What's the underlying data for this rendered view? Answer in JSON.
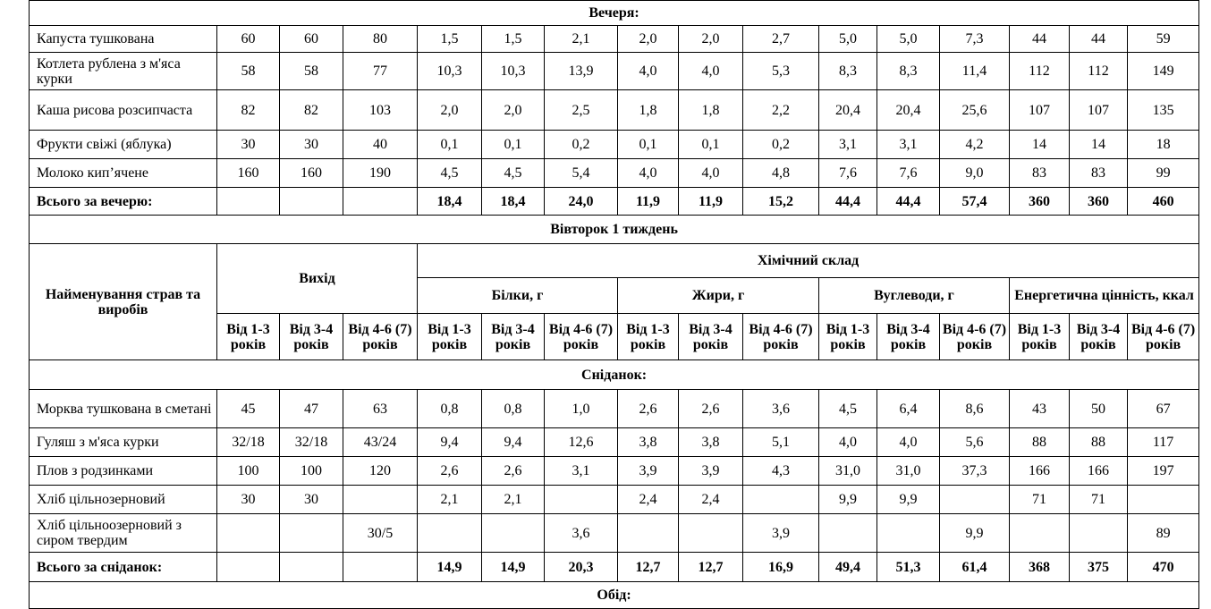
{
  "dinner": {
    "title": "Вечеря:",
    "rows": [
      [
        "Капуста тушкована",
        "60",
        "60",
        "80",
        "1,5",
        "1,5",
        "2,1",
        "2,0",
        "2,0",
        "2,7",
        "5,0",
        "5,0",
        "7,3",
        "44",
        "44",
        "59"
      ],
      [
        "Котлета рублена з м'яса курки",
        "58",
        "58",
        "77",
        "10,3",
        "10,3",
        "13,9",
        "4,0",
        "4,0",
        "5,3",
        "8,3",
        "8,3",
        "11,4",
        "112",
        "112",
        "149"
      ],
      [
        "Каша рисова розсипчаста",
        "82",
        "82",
        "103",
        "2,0",
        "2,0",
        "2,5",
        "1,8",
        "1,8",
        "2,2",
        "20,4",
        "20,4",
        "25,6",
        "107",
        "107",
        "135"
      ],
      [
        "Фрукти свіжі (яблука)",
        "30",
        "30",
        "40",
        "0,1",
        "0,1",
        "0,2",
        "0,1",
        "0,1",
        "0,2",
        "3,1",
        "3,1",
        "4,2",
        "14",
        "14",
        "18"
      ],
      [
        "Молоко кип’ячене",
        "160",
        "160",
        "190",
        "4,5",
        "4,5",
        "5,4",
        "4,0",
        "4,0",
        "4,8",
        "7,6",
        "7,6",
        "9,0",
        "83",
        "83",
        "99"
      ]
    ],
    "total": [
      "Всього за вечерю:",
      null,
      null,
      null,
      "18,4",
      "18,4",
      "24,0",
      "11,9",
      "11,9",
      "15,2",
      "44,4",
      "44,4",
      "57,4",
      "360",
      "360",
      "460"
    ]
  },
  "day_title": "Вівторок 1 тиждень",
  "header": {
    "name": "Найменування страв та виробів",
    "output": "Вихід",
    "chem": "Хімічний склад",
    "groups": [
      "Білки, г",
      "Жири, г",
      "Вуглеводи, г",
      "Енергетична цінність, ккал"
    ],
    "ages": [
      "Від 1-3 років",
      "Від 3-4 років",
      "Від 4-6 (7) років"
    ]
  },
  "breakfast": {
    "title": "Сніданок:",
    "rows": [
      [
        "Морква тушкована в сметані",
        "45",
        "47",
        "63",
        "0,8",
        "0,8",
        "1,0",
        "2,6",
        "2,6",
        "3,6",
        "4,5",
        "6,4",
        "8,6",
        "43",
        "50",
        "67"
      ],
      [
        "Гуляш з м'яса курки",
        "32/18",
        "32/18",
        "43/24",
        "9,4",
        "9,4",
        "12,6",
        "3,8",
        "3,8",
        "5,1",
        "4,0",
        "4,0",
        "5,6",
        "88",
        "88",
        "117"
      ],
      [
        "Плов з родзинками",
        "100",
        "100",
        "120",
        "2,6",
        "2,6",
        "3,1",
        "3,9",
        "3,9",
        "4,3",
        "31,0",
        "31,0",
        "37,3",
        "166",
        "166",
        "197"
      ],
      [
        "Хліб цільнозерновий",
        "30",
        "30",
        null,
        "2,1",
        "2,1",
        null,
        "2,4",
        "2,4",
        null,
        "9,9",
        "9,9",
        null,
        "71",
        "71",
        null
      ],
      [
        "Хліб цільноозерновий з сиром твердим",
        null,
        null,
        "30/5",
        null,
        null,
        "3,6",
        null,
        null,
        "3,9",
        null,
        null,
        "9,9",
        null,
        null,
        "89"
      ]
    ],
    "total": [
      "Всього за сніданок:",
      null,
      null,
      null,
      "14,9",
      "14,9",
      "20,3",
      "12,7",
      "12,7",
      "16,9",
      "49,4",
      "51,3",
      "61,4",
      "368",
      "375",
      "470"
    ]
  },
  "lunch_title": "Обід:"
}
